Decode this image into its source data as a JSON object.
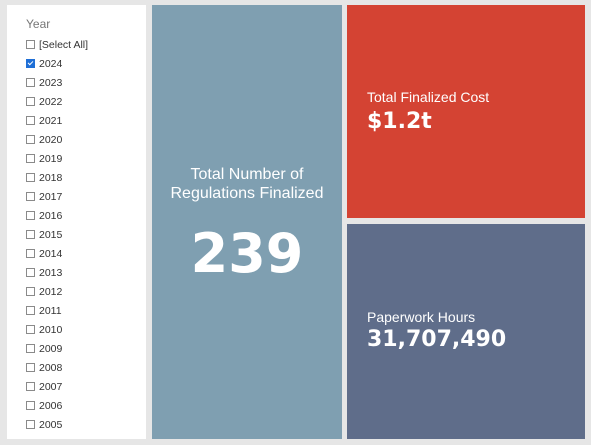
{
  "slicer": {
    "title": "Year",
    "items": [
      {
        "label": "[Select All]",
        "checked": false
      },
      {
        "label": "2024",
        "checked": true
      },
      {
        "label": "2023",
        "checked": false
      },
      {
        "label": "2022",
        "checked": false
      },
      {
        "label": "2021",
        "checked": false
      },
      {
        "label": "2020",
        "checked": false
      },
      {
        "label": "2019",
        "checked": false
      },
      {
        "label": "2018",
        "checked": false
      },
      {
        "label": "2017",
        "checked": false
      },
      {
        "label": "2016",
        "checked": false
      },
      {
        "label": "2015",
        "checked": false
      },
      {
        "label": "2014",
        "checked": false
      },
      {
        "label": "2013",
        "checked": false
      },
      {
        "label": "2012",
        "checked": false
      },
      {
        "label": "2011",
        "checked": false
      },
      {
        "label": "2010",
        "checked": false
      },
      {
        "label": "2009",
        "checked": false
      },
      {
        "label": "2008",
        "checked": false
      },
      {
        "label": "2007",
        "checked": false
      },
      {
        "label": "2006",
        "checked": false
      },
      {
        "label": "2005",
        "checked": false
      }
    ]
  },
  "cards": {
    "regulations": {
      "label": "Total Number of Regulations Finalized",
      "value": "239",
      "color": "#7f9fb1"
    },
    "cost": {
      "label": "Total Finalized Cost",
      "value": "$1.2t",
      "color": "#d44333"
    },
    "hours": {
      "label": "Paperwork Hours",
      "value": "31,707,490",
      "color": "#5f6d8a"
    }
  },
  "colors": {
    "background": "#e6e6e6",
    "checkbox_checked": "#1f6fd6"
  }
}
